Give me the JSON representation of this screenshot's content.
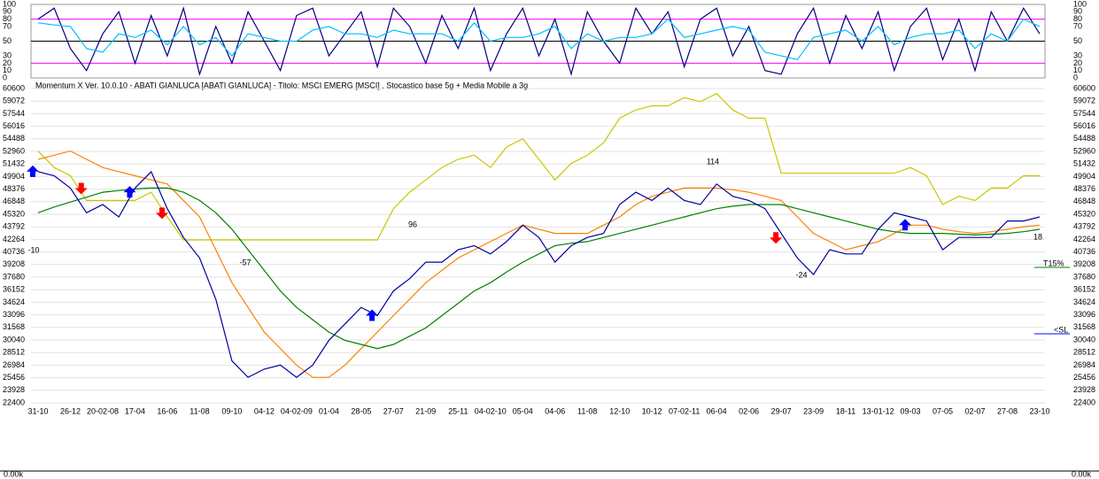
{
  "chart_data": [
    {
      "type": "line",
      "ylim": [
        0,
        100
      ],
      "yticks": [
        0,
        10,
        20,
        30,
        50,
        70,
        80,
        90,
        100
      ],
      "tick_line_colors": [
        null,
        null,
        "#ff00ff",
        null,
        "#000000",
        null,
        "#ff00ff",
        null,
        null
      ],
      "series": [
        {
          "color": "#000080",
          "values": [
            80,
            95,
            40,
            10,
            60,
            90,
            20,
            85,
            30,
            95,
            5,
            70,
            20,
            90,
            50,
            10,
            85,
            95,
            30,
            60,
            90,
            15,
            95,
            70,
            20,
            85,
            40,
            95,
            10,
            60,
            95,
            30,
            80,
            5,
            90,
            50,
            20,
            95,
            60,
            90,
            15,
            80,
            95,
            30,
            70,
            10,
            5,
            60,
            95,
            20,
            85,
            40,
            90,
            10,
            70,
            95,
            25,
            80,
            10,
            90,
            50,
            95,
            60
          ]
        },
        {
          "color": "#00bfff",
          "values": [
            75,
            72,
            70,
            40,
            35,
            60,
            55,
            65,
            45,
            70,
            45,
            55,
            30,
            60,
            55,
            50,
            50,
            65,
            70,
            60,
            60,
            55,
            65,
            60,
            60,
            60,
            50,
            75,
            50,
            55,
            55,
            60,
            70,
            40,
            60,
            50,
            55,
            55,
            60,
            80,
            55,
            60,
            65,
            70,
            65,
            35,
            30,
            25,
            55,
            60,
            65,
            50,
            70,
            45,
            55,
            60,
            60,
            65,
            40,
            60,
            50,
            80,
            70
          ]
        }
      ]
    },
    {
      "type": "line",
      "title": "Momentum X  Ver. 10.0.10  -  ABATI GIANLUCA  [ABATI GIANLUCA] - Titolo: MSCI EMERG  [MSCI] ,  Stocastico base 5g + Media Mobile a 3g",
      "title_color": "#ff00ff",
      "categories": [
        "31-10",
        null,
        "26-12",
        null,
        "20-02-08",
        null,
        "17-04",
        null,
        "16-06",
        null,
        "11-08",
        null,
        "09-10",
        null,
        "04-12",
        null,
        "04-02-09",
        null,
        "01-04",
        null,
        "28-05",
        null,
        "27-07",
        null,
        "21-09",
        null,
        "25-11",
        null,
        "04-02-10",
        null,
        "05-04",
        null,
        "04-06",
        null,
        "11-08",
        null,
        "12-10",
        null,
        "10-12",
        null,
        "07-02-11",
        null,
        "06-04",
        null,
        "02-06",
        null,
        "29-07",
        null,
        "23-09",
        null,
        "18-11",
        null,
        "13-01-12",
        null,
        "09-03",
        null,
        "07-05",
        null,
        "02-07",
        null,
        "27-08",
        null,
        "23-10"
      ],
      "year_label_color": "#ff0000",
      "ylim": [
        22400,
        60600
      ],
      "yticks": [
        60600,
        59072,
        57544,
        56016,
        54488,
        52960,
        51432,
        49904,
        48376,
        46848,
        45320,
        43792,
        42264,
        40736,
        39208,
        37680,
        36152,
        34624,
        33096,
        31568,
        30040,
        28512,
        26984,
        25456,
        23928,
        22400
      ],
      "grid": true,
      "series": [
        {
          "color": "#c8c800",
          "values": [
            53000,
            51000,
            50000,
            47000,
            47000,
            47000,
            47000,
            48000,
            45000,
            42200,
            42200,
            42200,
            42200,
            42200,
            42200,
            42200,
            42200,
            42200,
            42200,
            42200,
            42200,
            42200,
            46000,
            48000,
            49500,
            51000,
            52000,
            52500,
            51000,
            53500,
            54500,
            52000,
            49500,
            51500,
            52500,
            54000,
            57000,
            58000,
            58500,
            58500,
            59500,
            59000,
            60000,
            58000,
            57000,
            57000,
            50300,
            50300,
            50300,
            50300,
            50300,
            50300,
            50300,
            50300,
            51000,
            50000,
            46500,
            47500,
            47000,
            48500,
            48500,
            50000,
            50000
          ]
        },
        {
          "color": "#ff8000",
          "values": [
            52000,
            52500,
            53000,
            52000,
            51000,
            50500,
            50000,
            49500,
            49000,
            47000,
            45000,
            41000,
            37000,
            34000,
            31000,
            29000,
            27000,
            25500,
            25500,
            27000,
            29000,
            31000,
            33000,
            35000,
            37000,
            38500,
            40000,
            41000,
            42000,
            43000,
            44000,
            43500,
            43000,
            43000,
            43000,
            44000,
            45000,
            46500,
            47500,
            48000,
            48500,
            48500,
            48500,
            48300,
            48000,
            47500,
            47000,
            45000,
            43000,
            42000,
            41000,
            41500,
            42000,
            43000,
            44000,
            44000,
            43500,
            43200,
            43000,
            43200,
            43500,
            43800,
            44000
          ]
        },
        {
          "color": "#008000",
          "values": [
            45500,
            46200,
            46800,
            47400,
            48000,
            48200,
            48400,
            48500,
            48500,
            48000,
            47000,
            45500,
            43500,
            41000,
            38500,
            36000,
            34000,
            32500,
            31000,
            30000,
            29500,
            29000,
            29500,
            30500,
            31500,
            33000,
            34500,
            36000,
            37000,
            38300,
            39500,
            40500,
            41500,
            41800,
            42000,
            42500,
            43000,
            43500,
            44000,
            44500,
            45000,
            45500,
            46000,
            46300,
            46500,
            46500,
            46500,
            46000,
            45500,
            45000,
            44500,
            44000,
            43500,
            43200,
            43000,
            43000,
            43000,
            42900,
            42800,
            42900,
            43000,
            43200,
            43500
          ]
        },
        {
          "color": "#0000a0",
          "values": [
            50500,
            50000,
            48500,
            45500,
            46500,
            45000,
            48500,
            50500,
            46000,
            42500,
            40000,
            35000,
            27500,
            25500,
            26500,
            27000,
            25500,
            27000,
            30000,
            32000,
            34000,
            33000,
            36000,
            37500,
            39500,
            39500,
            41000,
            41500,
            40500,
            42000,
            44000,
            42500,
            39500,
            41500,
            42500,
            43000,
            46500,
            48000,
            47000,
            48500,
            47000,
            46500,
            49000,
            47500,
            47000,
            46000,
            43000,
            40000,
            38000,
            41000,
            40500,
            40500,
            43500,
            45500,
            45000,
            44500,
            41000,
            42500,
            42500,
            42500,
            44500,
            44500,
            45000
          ]
        },
        {
          "type": "marker_up",
          "color": "#0000ff",
          "values": [
            50500,
            null,
            null,
            null,
            null,
            null,
            48000,
            null,
            null,
            null,
            null,
            null,
            null,
            null,
            null,
            null,
            null,
            null,
            null,
            null,
            null,
            33000,
            null,
            null,
            null,
            null,
            null,
            null,
            null,
            null,
            null,
            null,
            null,
            null,
            null,
            null,
            null,
            null,
            null,
            null,
            null,
            null,
            null,
            null,
            null,
            null,
            null,
            null,
            null,
            null,
            null,
            null,
            null,
            null,
            44000,
            null,
            null,
            null,
            null,
            null,
            null,
            null,
            null
          ]
        },
        {
          "type": "marker_down",
          "color": "#ff0000",
          "values": [
            null,
            null,
            null,
            48500,
            null,
            null,
            null,
            null,
            45500,
            null,
            null,
            null,
            null,
            null,
            null,
            null,
            null,
            null,
            null,
            null,
            null,
            null,
            null,
            null,
            null,
            null,
            null,
            null,
            null,
            null,
            null,
            null,
            null,
            null,
            null,
            null,
            null,
            null,
            null,
            null,
            null,
            null,
            null,
            null,
            null,
            null,
            42500,
            null,
            null,
            null,
            null,
            null,
            null,
            null,
            null,
            null,
            null,
            null,
            null,
            null,
            null,
            null,
            null
          ]
        }
      ],
      "annotations": [
        "-10",
        "-57",
        "96",
        "114",
        "-24",
        "18"
      ],
      "annotation_color": "#ff0000",
      "side_labels": [
        {
          "text": "T15%",
          "color": "#008000"
        },
        {
          "text": "<SL",
          "color": "#0000ff"
        }
      ]
    }
  ],
  "bottom_axis_label": "0.00k"
}
